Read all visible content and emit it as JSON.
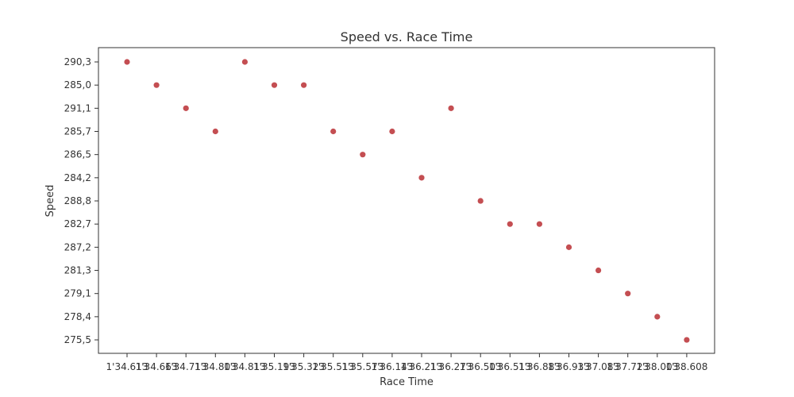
{
  "chart_data": {
    "type": "scatter",
    "title": "Speed vs. Race Time",
    "xlabel": "Race Time",
    "ylabel": "Speed",
    "x_categories": [
      "1'34.613",
      "1'34.663",
      "1'34.713",
      "1'34.803",
      "1'34.813",
      "1'35.193",
      "1'35.323",
      "1'35.513",
      "1'35.573",
      "1'36.143",
      "1'36.213",
      "1'36.273",
      "1'36.503",
      "1'36.513",
      "1'36.883",
      "1'36.933",
      "1'37.083",
      "1'37.723",
      "1'38.003",
      "1'38.608"
    ],
    "y_categories": [
      "290,3",
      "285,0",
      "291,1",
      "285,7",
      "286,5",
      "284,2",
      "288,8",
      "282,7",
      "287,2",
      "281,3",
      "279,1",
      "278,4",
      "275,5"
    ],
    "points": [
      {
        "x": "1'34.613",
        "y": "290,3"
      },
      {
        "x": "1'34.663",
        "y": "285,0"
      },
      {
        "x": "1'34.713",
        "y": "291,1"
      },
      {
        "x": "1'34.803",
        "y": "285,7"
      },
      {
        "x": "1'34.813",
        "y": "290,3"
      },
      {
        "x": "1'35.193",
        "y": "285,0"
      },
      {
        "x": "1'35.323",
        "y": "285,0"
      },
      {
        "x": "1'35.513",
        "y": "285,7"
      },
      {
        "x": "1'35.573",
        "y": "286,5"
      },
      {
        "x": "1'36.143",
        "y": "285,7"
      },
      {
        "x": "1'36.213",
        "y": "284,2"
      },
      {
        "x": "1'36.273",
        "y": "291,1"
      },
      {
        "x": "1'36.503",
        "y": "288,8"
      },
      {
        "x": "1'36.513",
        "y": "282,7"
      },
      {
        "x": "1'36.883",
        "y": "282,7"
      },
      {
        "x": "1'36.933",
        "y": "287,2"
      },
      {
        "x": "1'37.083",
        "y": "281,3"
      },
      {
        "x": "1'37.723",
        "y": "279,1"
      },
      {
        "x": "1'38.003",
        "y": "278,4"
      },
      {
        "x": "1'38.608",
        "y": "275,5"
      }
    ],
    "marker_color": "#c44e52",
    "grid": false,
    "legend": "none"
  }
}
